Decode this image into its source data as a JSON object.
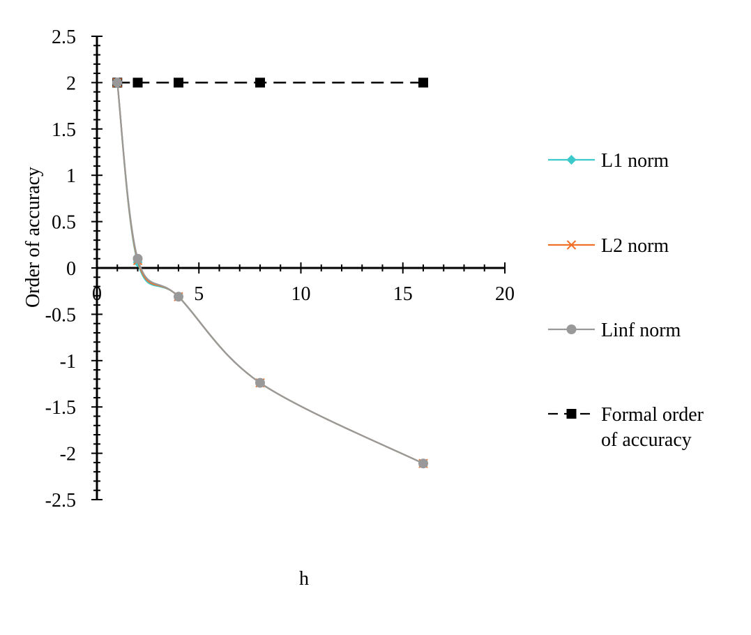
{
  "chart_data": {
    "type": "scatter",
    "title": "",
    "xlabel": "h",
    "ylabel": "Order of accuracy",
    "xlim": [
      0,
      20
    ],
    "ylim": [
      -2.5,
      2.5
    ],
    "xticks": [
      0,
      5,
      10,
      15,
      20
    ],
    "xtick_labels": [
      "0",
      "5",
      "10",
      "15",
      "20"
    ],
    "yticks": [
      2.5,
      2,
      1.5,
      1,
      0.5,
      0,
      -0.5,
      -1,
      -1.5,
      -2,
      -2.5
    ],
    "ytick_labels": [
      "2.5",
      "2",
      "1.5",
      "1",
      "0.5",
      "0",
      "-0.5",
      "-1",
      "-1.5",
      "-2",
      "-2.5"
    ],
    "grid": false,
    "legend_position": "right",
    "series": [
      {
        "name": "L1 norm",
        "color": "#3dc9c9",
        "marker": "diamond",
        "line": "solid",
        "smooth": true,
        "x": [
          1,
          2,
          4,
          8,
          16
        ],
        "y": [
          2.0,
          0.06,
          -0.31,
          -1.24,
          -2.11
        ]
      },
      {
        "name": "L2 norm",
        "color": "#f07028",
        "marker": "x",
        "line": "solid",
        "smooth": true,
        "x": [
          1,
          2,
          4,
          8,
          16
        ],
        "y": [
          2.0,
          0.08,
          -0.31,
          -1.24,
          -2.11
        ]
      },
      {
        "name": "Linf norm",
        "color": "#999999",
        "marker": "circle",
        "line": "solid",
        "smooth": true,
        "x": [
          1,
          2,
          4,
          8,
          16
        ],
        "y": [
          2.0,
          0.1,
          -0.31,
          -1.24,
          -2.11
        ]
      },
      {
        "name": "Formal order of accuracy",
        "legend_lines": [
          "Formal order",
          "of accuracy"
        ],
        "color": "#000000",
        "marker": "square",
        "line": "dashed",
        "smooth": false,
        "x": [
          1,
          2,
          4,
          8,
          16
        ],
        "y": [
          2,
          2,
          2,
          2,
          2
        ]
      }
    ]
  }
}
